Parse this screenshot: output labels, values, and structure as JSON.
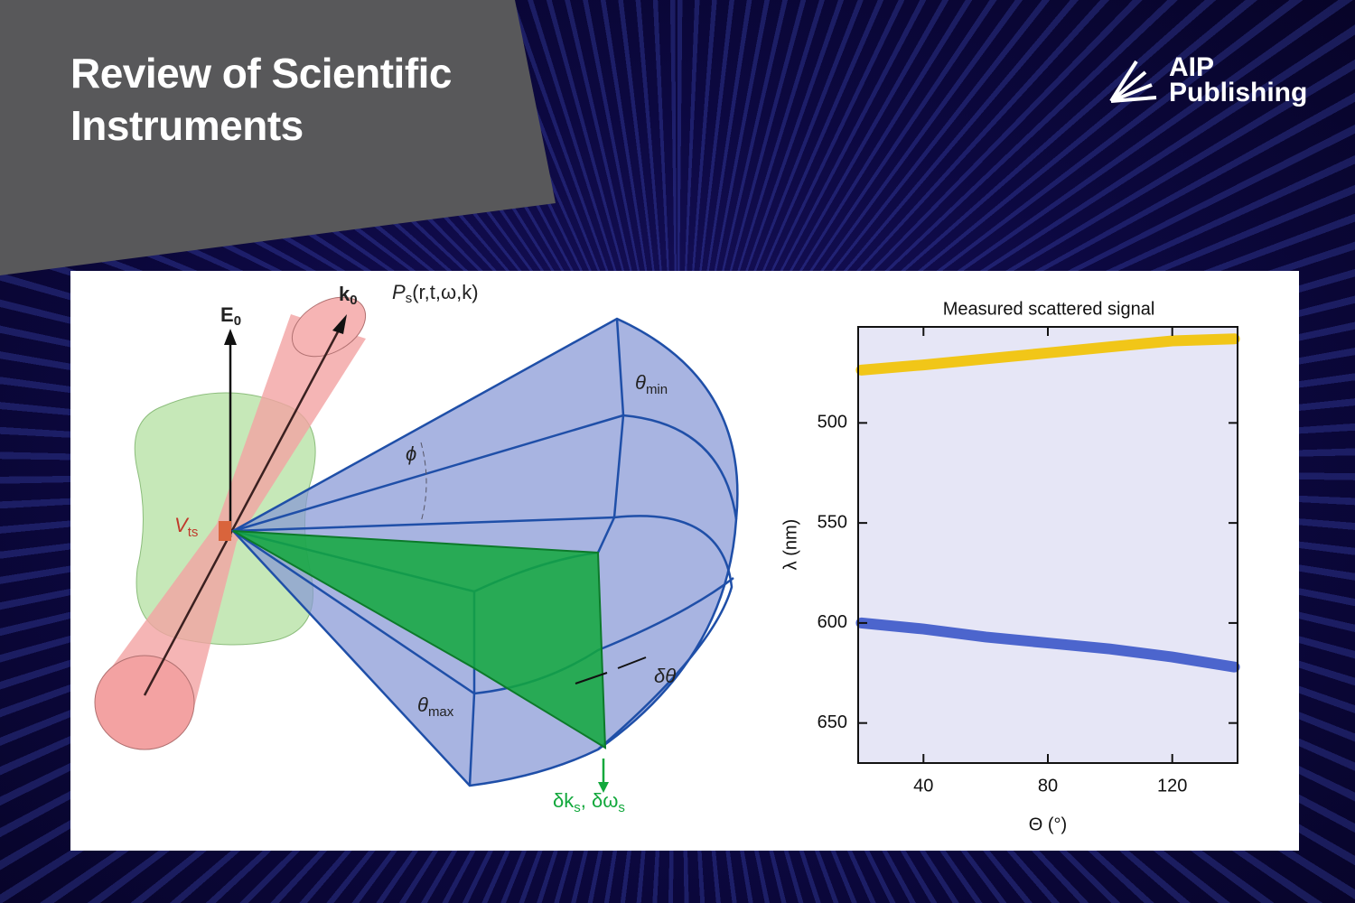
{
  "header": {
    "title": "Review of Scientific Instruments"
  },
  "logo": {
    "line1": "AIP",
    "line2": "Publishing"
  },
  "diagram": {
    "labels": {
      "e0": [
        "E",
        "0"
      ],
      "k0": [
        "k",
        "0"
      ],
      "ps": [
        "P",
        "s",
        "(r,t,ω,k)"
      ],
      "theta_min": [
        "θ",
        "min"
      ],
      "phi": [
        "ϕ"
      ],
      "vts": [
        "V",
        "ts"
      ],
      "theta_max": [
        "θ",
        "max"
      ],
      "delta_theta": [
        "δθ"
      ],
      "delta_ks": [
        "δk",
        "s",
        ", δω",
        "s"
      ]
    }
  },
  "chart_data": {
    "type": "line",
    "title": "Measured scattered signal",
    "x_label": "Θ (°)",
    "y_label": "λ (nm)",
    "x": [
      20,
      40,
      60,
      80,
      100,
      120,
      140
    ],
    "series": [
      {
        "color": "#f2c200",
        "values": [
          473.6,
          471,
          468,
          465,
          462,
          459,
          458
        ]
      },
      {
        "color": "#3b56c9",
        "values": [
          600,
          603,
          607,
          610,
          613,
          617,
          622
        ]
      }
    ],
    "xlim": [
      19,
      141
    ],
    "ylim": [
      452,
      670
    ],
    "y_inverted": true,
    "xticks": [
      40,
      80,
      120
    ],
    "yticks": [
      500,
      550,
      600,
      650
    ]
  }
}
